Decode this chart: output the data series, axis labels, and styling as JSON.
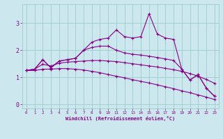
{
  "xlabel": "Windchill (Refroidissement éolien,°C)",
  "background_color": "#cce8ee",
  "grid_color": "#99cccc",
  "line_color": "#880088",
  "x_values": [
    0,
    1,
    2,
    3,
    4,
    5,
    6,
    7,
    8,
    9,
    10,
    11,
    12,
    13,
    14,
    15,
    16,
    17,
    18,
    19,
    20,
    21,
    22,
    23
  ],
  "series1": [
    1.25,
    1.3,
    1.65,
    1.35,
    1.6,
    1.65,
    1.7,
    2.0,
    2.3,
    2.4,
    2.45,
    2.75,
    2.5,
    2.45,
    2.5,
    3.35,
    2.6,
    2.45,
    2.4,
    1.3,
    0.9,
    1.1,
    0.6,
    0.3
  ],
  "series2": [
    1.25,
    1.3,
    1.65,
    1.35,
    1.6,
    1.65,
    1.7,
    2.0,
    2.1,
    2.15,
    2.15,
    2.0,
    1.9,
    1.85,
    1.82,
    1.78,
    1.73,
    1.68,
    1.62,
    1.3,
    0.9,
    1.1,
    0.6,
    0.3
  ],
  "series3": [
    1.25,
    1.3,
    1.48,
    1.42,
    1.52,
    1.56,
    1.58,
    1.6,
    1.62,
    1.62,
    1.6,
    1.58,
    1.54,
    1.5,
    1.46,
    1.42,
    1.38,
    1.33,
    1.28,
    1.22,
    1.14,
    1.04,
    0.92,
    0.78
  ],
  "series4": [
    1.25,
    1.25,
    1.3,
    1.3,
    1.32,
    1.32,
    1.3,
    1.27,
    1.22,
    1.17,
    1.1,
    1.04,
    0.98,
    0.91,
    0.85,
    0.79,
    0.72,
    0.65,
    0.58,
    0.5,
    0.43,
    0.35,
    0.27,
    0.18
  ],
  "ylim": [
    -0.15,
    3.7
  ],
  "xlim": [
    -0.5,
    23.5
  ],
  "yticks": [
    0,
    1,
    2,
    3
  ],
  "xticks": [
    0,
    1,
    2,
    3,
    4,
    5,
    6,
    7,
    8,
    9,
    10,
    11,
    12,
    13,
    14,
    15,
    16,
    17,
    18,
    19,
    20,
    21,
    22,
    23
  ]
}
